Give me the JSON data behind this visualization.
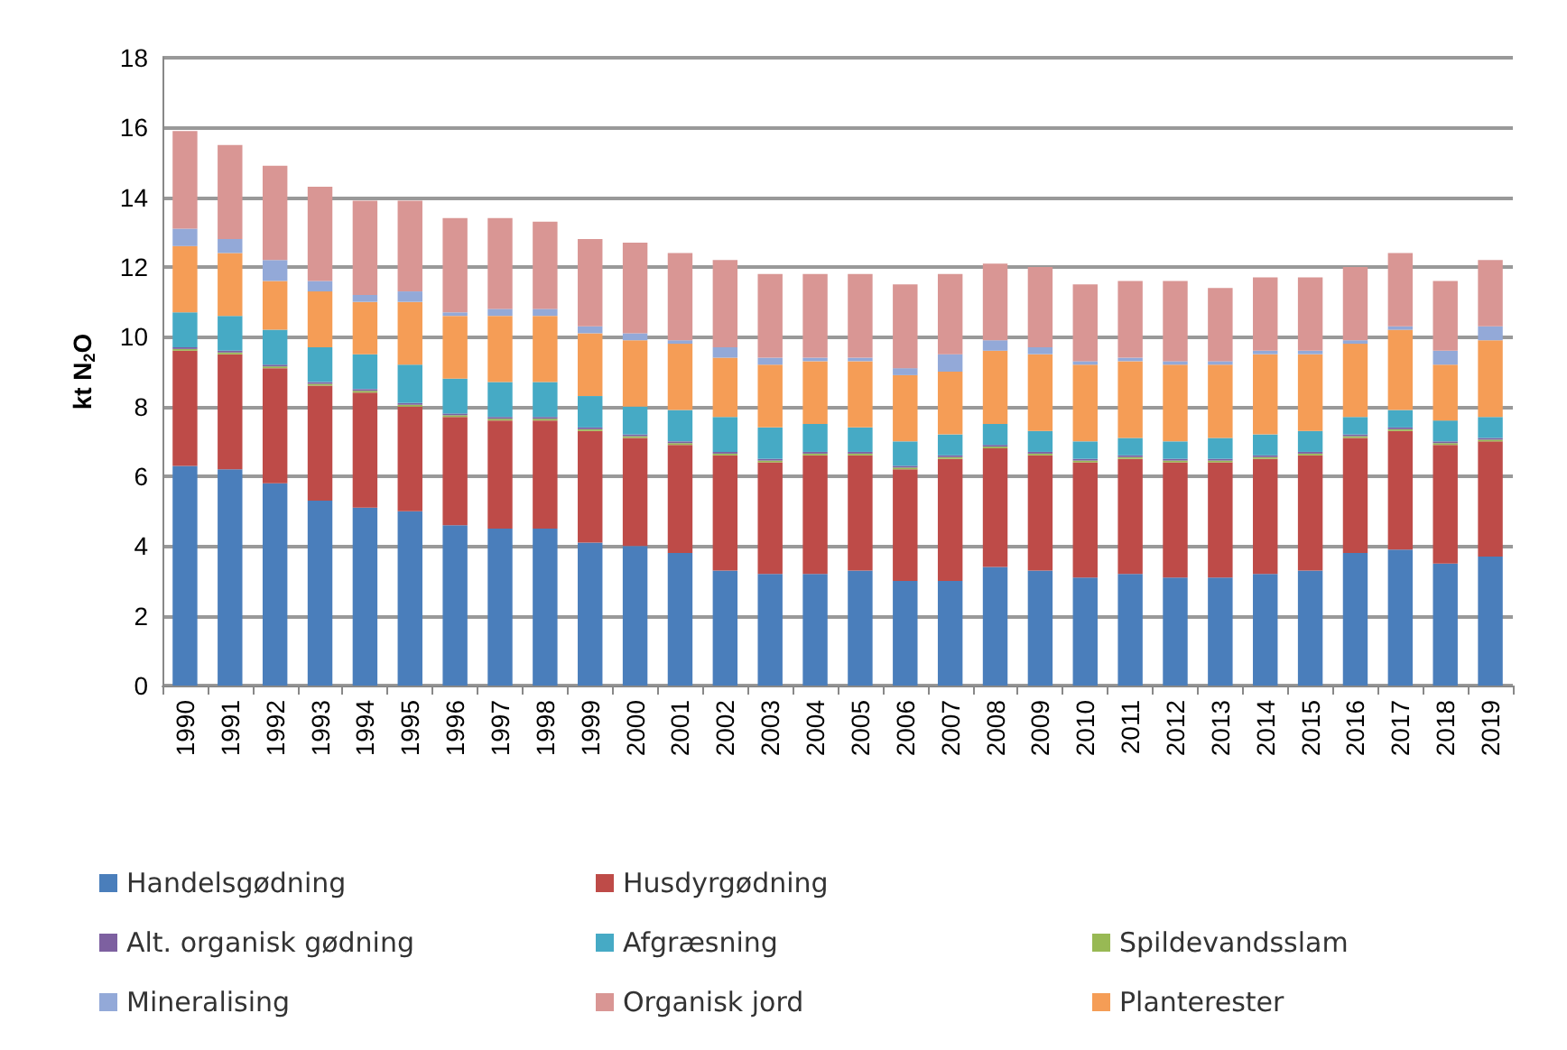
{
  "chart_data": {
    "type": "bar",
    "stacked": true,
    "ylabel": "kt N$_{2}$O",
    "ylim": [
      0,
      18
    ],
    "yticks": [
      0,
      2,
      4,
      6,
      8,
      10,
      12,
      14,
      16,
      18
    ],
    "grid": "y",
    "legend": "bottom",
    "categories": [
      "1990",
      "1991",
      "1992",
      "1993",
      "1994",
      "1995",
      "1996",
      "1997",
      "1998",
      "1999",
      "2000",
      "2001",
      "2002",
      "2003",
      "2004",
      "2005",
      "2006",
      "2007",
      "2008",
      "2009",
      "2010",
      "2011",
      "2012",
      "2013",
      "2014",
      "2015",
      "2016",
      "2017",
      "2018",
      "2019"
    ],
    "series": [
      {
        "name": "Handelsgødning",
        "color": "#4a7ebb",
        "values": [
          6.3,
          6.2,
          5.8,
          5.3,
          5.1,
          5.0,
          4.6,
          4.5,
          4.5,
          4.1,
          4.0,
          3.8,
          3.3,
          3.2,
          3.2,
          3.3,
          3.0,
          3.0,
          3.4,
          3.3,
          3.1,
          3.2,
          3.1,
          3.1,
          3.2,
          3.3,
          3.8,
          3.9,
          3.5,
          3.7
        ]
      },
      {
        "name": "Husdyrgødning",
        "color": "#be4b48",
        "values": [
          3.3,
          3.3,
          3.3,
          3.3,
          3.3,
          3.0,
          3.1,
          3.1,
          3.1,
          3.2,
          3.1,
          3.1,
          3.3,
          3.2,
          3.4,
          3.3,
          3.2,
          3.5,
          3.4,
          3.3,
          3.3,
          3.3,
          3.3,
          3.3,
          3.3,
          3.3,
          3.3,
          3.4,
          3.4,
          3.3
        ]
      },
      {
        "name": "Spildevandsslam",
        "color": "#98b954",
        "values": [
          0.05,
          0.05,
          0.05,
          0.05,
          0.05,
          0.05,
          0.05,
          0.05,
          0.05,
          0.05,
          0.05,
          0.05,
          0.05,
          0.05,
          0.05,
          0.05,
          0.05,
          0.05,
          0.05,
          0.05,
          0.05,
          0.05,
          0.05,
          0.05,
          0.05,
          0.05,
          0.05,
          0.05,
          0.05,
          0.05
        ]
      },
      {
        "name": "Alt. organisk gødning",
        "color": "#7d60a0",
        "values": [
          0.05,
          0.05,
          0.05,
          0.05,
          0.05,
          0.05,
          0.05,
          0.05,
          0.05,
          0.05,
          0.05,
          0.05,
          0.05,
          0.05,
          0.05,
          0.05,
          0.05,
          0.05,
          0.05,
          0.05,
          0.05,
          0.05,
          0.05,
          0.05,
          0.05,
          0.05,
          0.05,
          0.05,
          0.05,
          0.05
        ]
      },
      {
        "name": "Afgræsning",
        "color": "#46aac5",
        "values": [
          1.0,
          1.0,
          1.0,
          1.0,
          1.0,
          1.1,
          1.0,
          1.0,
          1.0,
          0.9,
          0.8,
          0.9,
          1.0,
          0.9,
          0.8,
          0.7,
          0.7,
          0.6,
          0.6,
          0.6,
          0.5,
          0.5,
          0.5,
          0.6,
          0.6,
          0.6,
          0.5,
          0.5,
          0.6,
          0.6
        ]
      },
      {
        "name": "Planterester",
        "color": "#f59d56",
        "values": [
          1.9,
          1.8,
          1.4,
          1.6,
          1.5,
          1.8,
          1.8,
          1.9,
          1.9,
          1.8,
          1.9,
          1.9,
          1.7,
          1.8,
          1.8,
          1.9,
          1.9,
          1.8,
          2.1,
          2.2,
          2.2,
          2.2,
          2.2,
          2.1,
          2.3,
          2.2,
          2.1,
          2.3,
          1.6,
          2.2
        ]
      },
      {
        "name": "Mineralising",
        "color": "#93a9d8",
        "values": [
          0.5,
          0.4,
          0.6,
          0.3,
          0.2,
          0.3,
          0.1,
          0.2,
          0.2,
          0.2,
          0.2,
          0.1,
          0.3,
          0.2,
          0.1,
          0.1,
          0.2,
          0.5,
          0.3,
          0.2,
          0.1,
          0.1,
          0.1,
          0.1,
          0.1,
          0.1,
          0.1,
          0.1,
          0.4,
          0.4
        ]
      },
      {
        "name": "Organisk jord",
        "color": "#d99694",
        "values": [
          2.8,
          2.7,
          2.7,
          2.7,
          2.7,
          2.6,
          2.7,
          2.6,
          2.5,
          2.5,
          2.6,
          2.5,
          2.5,
          2.4,
          2.4,
          2.4,
          2.4,
          2.3,
          2.2,
          2.3,
          2.2,
          2.2,
          2.3,
          2.1,
          2.1,
          2.1,
          2.1,
          2.1,
          2.0,
          1.9
        ]
      }
    ]
  }
}
